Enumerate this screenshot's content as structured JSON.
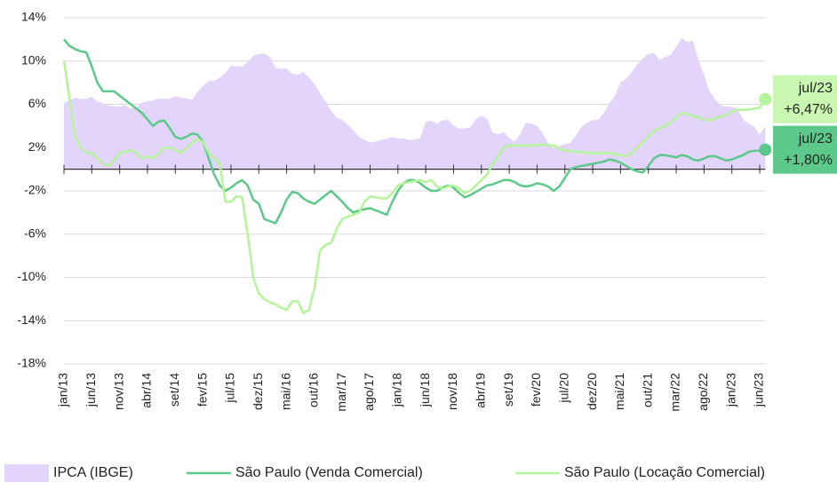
{
  "chart_data": {
    "type": "line",
    "categories": [
      "jan/13",
      null,
      null,
      null,
      null,
      "jun/13",
      null,
      null,
      null,
      null,
      "nov/13",
      null,
      null,
      null,
      null,
      "abr/14",
      null,
      null,
      null,
      null,
      "set/14",
      null,
      null,
      null,
      null,
      "fev/15",
      null,
      null,
      null,
      null,
      "jul/15",
      null,
      null,
      null,
      null,
      "dez/15",
      null,
      null,
      null,
      null,
      "mai/16",
      null,
      null,
      null,
      null,
      "out/16",
      null,
      null,
      null,
      null,
      "mar/17",
      null,
      null,
      null,
      null,
      "ago/17",
      null,
      null,
      null,
      null,
      "jan/18",
      null,
      null,
      null,
      null,
      "jun/18",
      null,
      null,
      null,
      null,
      "nov/18",
      null,
      null,
      null,
      null,
      "abr/19",
      null,
      null,
      null,
      null,
      "set/19",
      null,
      null,
      null,
      null,
      "fev/20",
      null,
      null,
      null,
      null,
      "jul/20",
      null,
      null,
      null,
      null,
      "dez/20",
      null,
      null,
      null,
      null,
      "mai/21",
      null,
      null,
      null,
      null,
      "out/21",
      null,
      null,
      null,
      null,
      "mar/22",
      null,
      null,
      null,
      null,
      "ago/22",
      null,
      null,
      null,
      null,
      "jan/23",
      null,
      null,
      null,
      null,
      "jun/23",
      null
    ],
    "series": [
      {
        "name": "IPCA (IBGE)",
        "color": "#e2d4fa",
        "area": true,
        "values": [
          6.15,
          6.31,
          6.59,
          6.49,
          6.5,
          6.7,
          6.27,
          6.09,
          5.86,
          5.84,
          5.77,
          5.91,
          5.59,
          5.68,
          6.15,
          6.28,
          6.37,
          6.52,
          6.5,
          6.51,
          6.75,
          6.59,
          6.56,
          6.41,
          7.14,
          7.7,
          8.13,
          8.17,
          8.47,
          8.89,
          9.56,
          9.53,
          9.49,
          9.93,
          10.48,
          10.67,
          10.71,
          10.36,
          9.39,
          9.28,
          9.32,
          8.84,
          8.74,
          8.97,
          8.48,
          7.87,
          6.99,
          6.29,
          5.35,
          4.76,
          4.57,
          4.08,
          3.6,
          3.0,
          2.71,
          2.46,
          2.54,
          2.7,
          2.8,
          2.95,
          2.86,
          2.84,
          2.68,
          2.76,
          2.86,
          4.39,
          4.48,
          4.19,
          4.53,
          4.56,
          4.05,
          3.75,
          3.78,
          3.89,
          4.58,
          4.94,
          4.66,
          3.37,
          3.22,
          3.43,
          2.89,
          2.54,
          3.27,
          4.31,
          4.19,
          4.01,
          3.3,
          2.4,
          1.88,
          2.13,
          2.31,
          2.44,
          3.14,
          3.92,
          4.31,
          4.52,
          4.56,
          5.2,
          6.1,
          6.76,
          8.06,
          8.35,
          8.99,
          9.68,
          10.25,
          10.67,
          10.74,
          10.06,
          10.38,
          10.54,
          11.3,
          12.13,
          11.73,
          11.89,
          10.07,
          8.73,
          7.17,
          6.47,
          5.9,
          5.79,
          5.77,
          5.6,
          4.65,
          4.18,
          3.94,
          3.16,
          3.99
        ]
      },
      {
        "name": "São Paulo (Venda Comercial)",
        "color": "#5cc98a",
        "values": [
          12.0,
          11.4,
          11.1,
          10.9,
          10.8,
          9.5,
          8.0,
          7.2,
          7.2,
          7.2,
          6.8,
          6.4,
          6.0,
          5.6,
          5.2,
          4.6,
          4.0,
          4.4,
          4.5,
          3.8,
          3.0,
          2.8,
          3.0,
          3.3,
          3.2,
          2.5,
          1.0,
          -0.5,
          -1.5,
          -2.0,
          -1.7,
          -1.3,
          -1.0,
          -1.5,
          -2.8,
          -3.2,
          -4.6,
          -4.8,
          -5.0,
          -4.0,
          -2.8,
          -2.1,
          -2.2,
          -2.7,
          -3.0,
          -3.2,
          -2.8,
          -2.4,
          -2.0,
          -2.5,
          -3.0,
          -3.6,
          -4.0,
          -3.8,
          -3.7,
          -3.6,
          -3.8,
          -4.0,
          -4.2,
          -3.0,
          -2.0,
          -1.3,
          -1.0,
          -1.0,
          -1.3,
          -1.7,
          -2.0,
          -2.0,
          -1.7,
          -1.5,
          -1.7,
          -2.2,
          -2.6,
          -2.4,
          -2.1,
          -1.8,
          -1.5,
          -1.4,
          -1.2,
          -1.0,
          -1.0,
          -1.2,
          -1.5,
          -1.6,
          -1.5,
          -1.3,
          -1.4,
          -1.6,
          -2.0,
          -1.6,
          -0.8,
          0.0,
          0.2,
          0.3,
          0.4,
          0.5,
          0.6,
          0.7,
          0.9,
          0.8,
          0.6,
          0.3,
          0.0,
          -0.2,
          -0.3,
          0.3,
          1.0,
          1.3,
          1.3,
          1.2,
          1.1,
          1.3,
          1.2,
          0.9,
          0.8,
          1.0,
          1.2,
          1.2,
          1.0,
          0.8,
          0.9,
          1.1,
          1.3,
          1.6,
          1.7,
          1.7,
          1.8
        ],
        "end_label": {
          "date": "jul/23",
          "text": "+1,80%"
        },
        "end_label_color": "#5cc98a"
      },
      {
        "name": "São Paulo (Locação Comercial)",
        "color": "#b5f49a",
        "values": [
          10.0,
          6.5,
          3.0,
          2.0,
          1.5,
          1.5,
          1.0,
          0.5,
          0.3,
          0.8,
          1.5,
          1.6,
          1.8,
          1.5,
          1.0,
          1.2,
          1.0,
          1.5,
          2.0,
          2.0,
          1.8,
          1.5,
          2.0,
          2.4,
          2.8,
          2.5,
          1.5,
          1.0,
          0.5,
          -3.0,
          -3.0,
          -2.5,
          -2.6,
          -6.0,
          -10.0,
          -11.5,
          -12.0,
          -12.3,
          -12.5,
          -12.8,
          -13.0,
          -12.2,
          -12.2,
          -13.3,
          -13.0,
          -11.0,
          -7.5,
          -7.0,
          -6.8,
          -5.5,
          -4.6,
          -4.4,
          -4.2,
          -4.0,
          -3.0,
          -2.5,
          -2.6,
          -2.7,
          -2.7,
          -2.2,
          -1.5,
          -1.3,
          -1.2,
          -1.1,
          -1.0,
          -1.2,
          -1.0,
          -1.6,
          -1.8,
          -1.6,
          -1.5,
          -1.8,
          -2.2,
          -2.0,
          -1.5,
          -1.0,
          -0.5,
          0.5,
          1.2,
          2.0,
          2.2,
          2.2,
          2.2,
          2.2,
          2.2,
          2.2,
          2.3,
          2.2,
          2.2,
          1.9,
          1.7,
          1.7,
          1.6,
          1.6,
          1.5,
          1.5,
          1.5,
          1.5,
          1.5,
          1.4,
          1.3,
          1.2,
          1.5,
          2.0,
          2.5,
          3.0,
          3.5,
          3.8,
          4.0,
          4.3,
          4.8,
          5.2,
          5.1,
          4.9,
          4.8,
          4.6,
          4.5,
          4.7,
          4.9,
          5.0,
          5.3,
          5.5,
          5.5,
          5.5,
          5.6,
          5.7,
          6.47
        ],
        "end_label": {
          "date": "jul/23",
          "text": "+6,47%"
        },
        "end_label_color": "#c9f7b2"
      }
    ],
    "ylim": [
      -18,
      14
    ],
    "yticks": [
      {
        "value": 14,
        "label": "14%"
      },
      {
        "value": 10,
        "label": "10%"
      },
      {
        "value": 6,
        "label": "6%"
      },
      {
        "value": 2,
        "label": "2%"
      },
      {
        "value": -2,
        "label": "-2%"
      },
      {
        "value": -6,
        "label": "-6%"
      },
      {
        "value": -10,
        "label": "-10%"
      },
      {
        "value": -14,
        "label": "-14%"
      },
      {
        "value": -18,
        "label": "-18%"
      }
    ],
    "grid": true,
    "legend": "bottom"
  }
}
